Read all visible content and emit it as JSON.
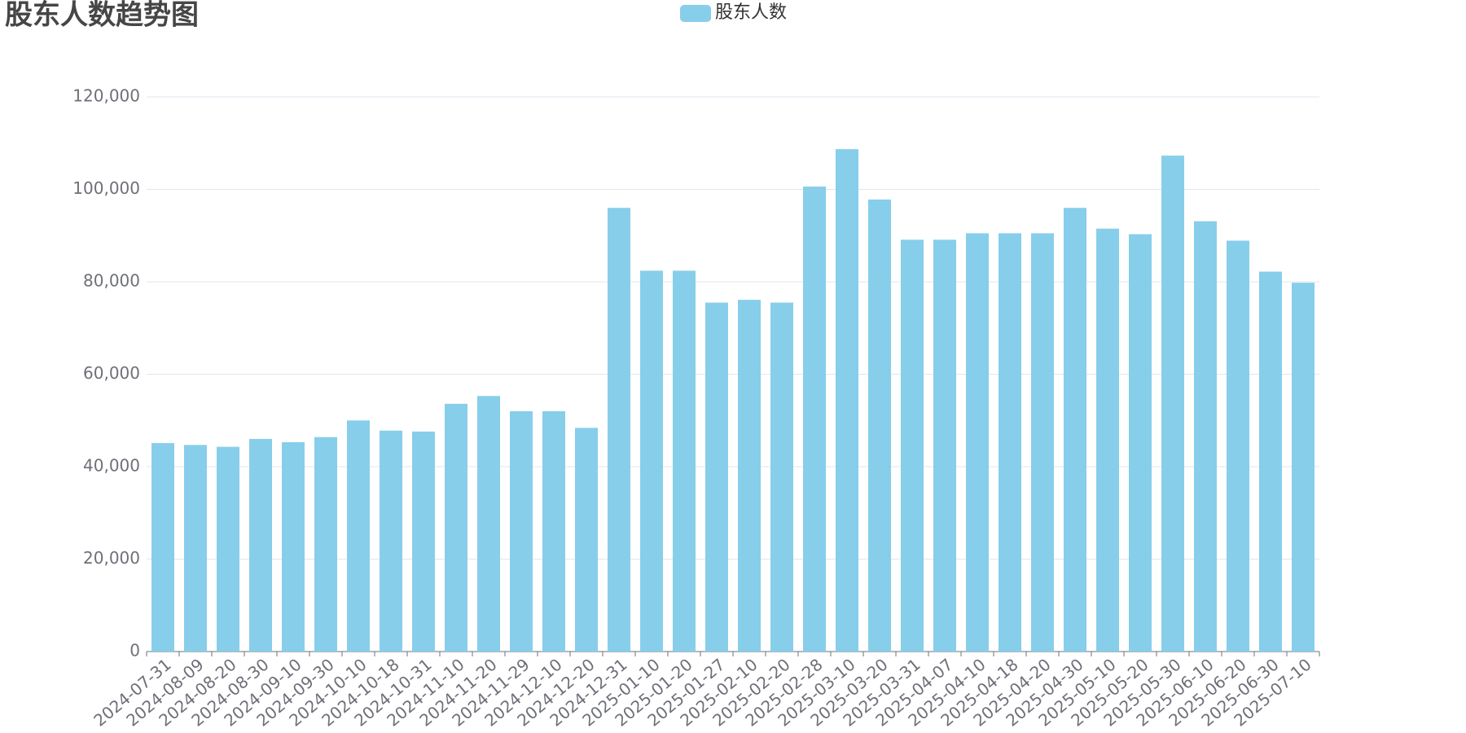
{
  "chart_data": {
    "type": "bar",
    "title": "股东人数趋势图",
    "legend": "股东人数",
    "series": [
      {
        "name": "股东人数",
        "color": "#87ceeb",
        "values": [
          45100,
          44700,
          44300,
          46000,
          45300,
          46400,
          50000,
          47800,
          47600,
          53600,
          55300,
          52000,
          52000,
          48400,
          96000,
          82400,
          82400,
          75500,
          76100,
          75500,
          100600,
          108700,
          97800,
          89100,
          89100,
          90500,
          90500,
          90500,
          96000,
          91500,
          90300,
          107300,
          93100,
          88900,
          82200,
          79800
        ]
      }
    ],
    "categories": [
      "2024-07-31",
      "2024-08-09",
      "2024-08-20",
      "2024-08-30",
      "2024-09-10",
      "2024-09-30",
      "2024-10-10",
      "2024-10-18",
      "2024-10-31",
      "2024-11-10",
      "2024-11-20",
      "2024-11-29",
      "2024-12-10",
      "2024-12-20",
      "2024-12-31",
      "2025-01-10",
      "2025-01-20",
      "2025-01-27",
      "2025-02-10",
      "2025-02-20",
      "2025-02-28",
      "2025-03-10",
      "2025-03-20",
      "2025-03-31",
      "2025-04-07",
      "2025-04-10",
      "2025-04-18",
      "2025-04-20",
      "2025-04-30",
      "2025-05-10",
      "2025-05-20",
      "2025-05-30",
      "2025-06-10",
      "2025-06-20",
      "2025-06-30",
      "2025-07-10"
    ],
    "ylim": [
      0,
      120000
    ],
    "yticks": [
      0,
      {
        "value": 20000,
        "label": "20,000"
      },
      {
        "value": 40000,
        "label": "40,000"
      },
      {
        "value": 60000,
        "label": "60,000"
      },
      {
        "value": 80000,
        "label": "80,000"
      },
      {
        "value": 100000,
        "label": "100,000"
      },
      {
        "value": 120000,
        "label": "120,000"
      }
    ],
    "grid": true
  }
}
